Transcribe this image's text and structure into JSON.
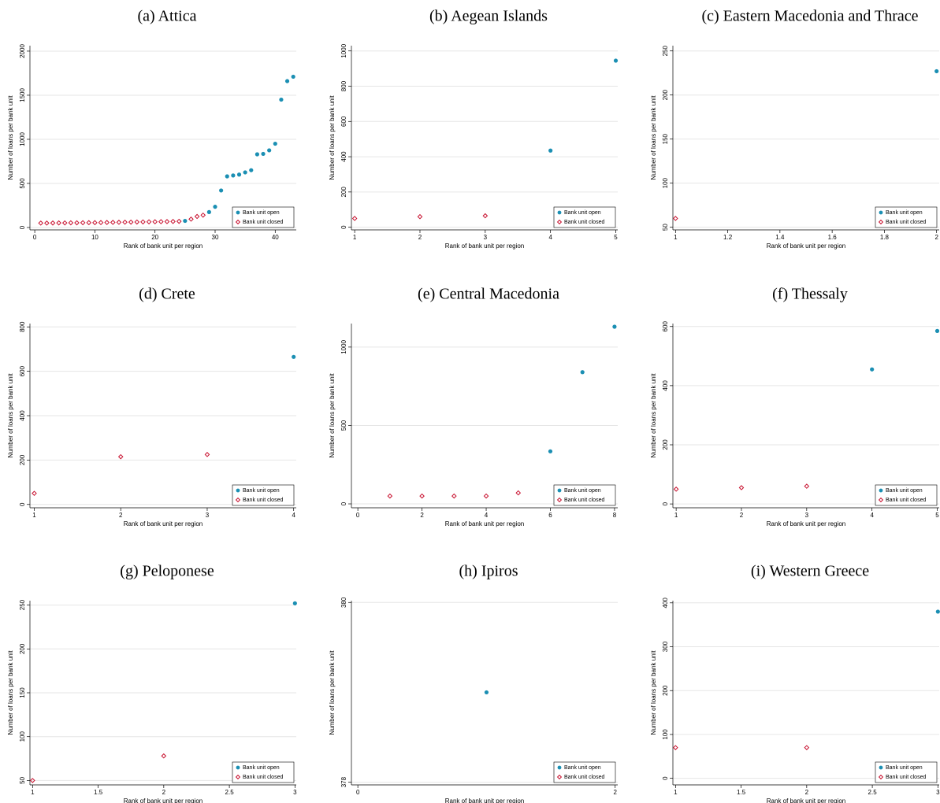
{
  "chart_data": [
    {
      "type": "scatter",
      "title": "(a) Attica",
      "x_label": "Rank of bank unit per region",
      "y_label": "Number of loans per bank unit",
      "xlim": [
        -0.8,
        43.5
      ],
      "ylim": [
        -27,
        2062
      ],
      "xticks": [
        0,
        10,
        20,
        30,
        40
      ],
      "yticks": [
        0,
        500,
        1000,
        1500,
        2000
      ],
      "grid": true,
      "legend": "lower right",
      "series": [
        {
          "name": "Bank unit open",
          "color": "#1b8fb3",
          "marker": "circle",
          "x": [
            25,
            29,
            30,
            31,
            32,
            33,
            34,
            35,
            36,
            37,
            38,
            39,
            40,
            41,
            42,
            43
          ],
          "y": [
            75,
            175,
            235,
            420,
            580,
            590,
            600,
            625,
            650,
            830,
            835,
            875,
            950,
            1450,
            1660,
            1710
          ]
        },
        {
          "name": "Bank unit closed",
          "color": "#c8102e",
          "marker": "diamond",
          "x": [
            1,
            2,
            3,
            4,
            5,
            6,
            7,
            8,
            9,
            10,
            11,
            12,
            13,
            14,
            15,
            16,
            17,
            18,
            19,
            20,
            21,
            22,
            23,
            24,
            26,
            27,
            28
          ],
          "y": [
            50,
            50,
            51,
            52,
            52,
            53,
            53,
            54,
            55,
            55,
            56,
            57,
            58,
            59,
            60,
            61,
            62,
            63,
            64,
            65,
            66,
            67,
            68,
            70,
            95,
            125,
            140
          ]
        }
      ]
    },
    {
      "type": "scatter",
      "title": "(b) Aegean Islands",
      "x_label": "Rank of bank unit per region",
      "y_label": "Number of loans per bank unit",
      "xlim": [
        0.95,
        5.03
      ],
      "ylim": [
        -15,
        1030
      ],
      "xticks": [
        1,
        2,
        3,
        4,
        5
      ],
      "yticks": [
        0,
        200,
        400,
        600,
        800,
        1000
      ],
      "grid": true,
      "legend": "lower right",
      "series": [
        {
          "name": "Bank unit open",
          "color": "#1b8fb3",
          "marker": "circle",
          "x": [
            4,
            5
          ],
          "y": [
            435,
            945
          ]
        },
        {
          "name": "Bank unit closed",
          "color": "#c8102e",
          "marker": "diamond",
          "x": [
            1,
            2,
            3
          ],
          "y": [
            50,
            60,
            65
          ]
        }
      ]
    },
    {
      "type": "scatter",
      "title": "(c) Eastern Macedonia and Thrace",
      "x_label": "Rank of bank unit per region",
      "y_label": "Number of loans per bank unit",
      "xlim": [
        0.99,
        2.01
      ],
      "ylim": [
        47,
        256
      ],
      "xticks": [
        1,
        1.2,
        1.4,
        1.6,
        1.8,
        2
      ],
      "yticks": [
        50,
        100,
        150,
        200,
        250
      ],
      "grid": true,
      "legend": "lower right",
      "series": [
        {
          "name": "Bank unit open",
          "color": "#1b8fb3",
          "marker": "circle",
          "x": [
            2
          ],
          "y": [
            227
          ]
        },
        {
          "name": "Bank unit closed",
          "color": "#c8102e",
          "marker": "diamond",
          "x": [
            1
          ],
          "y": [
            60
          ]
        }
      ]
    },
    {
      "type": "scatter",
      "title": "(d) Crete",
      "x_label": "Rank of bank unit per region",
      "y_label": "Number of loans per bank unit",
      "xlim": [
        0.95,
        4.03
      ],
      "ylim": [
        -15,
        815
      ],
      "xticks": [
        1,
        2,
        3,
        4
      ],
      "yticks": [
        0,
        200,
        400,
        600,
        800
      ],
      "grid": true,
      "legend": "lower right",
      "series": [
        {
          "name": "Bank unit open",
          "color": "#1b8fb3",
          "marker": "circle",
          "x": [
            4
          ],
          "y": [
            665
          ]
        },
        {
          "name": "Bank unit closed",
          "color": "#c8102e",
          "marker": "diamond",
          "x": [
            1,
            2,
            3
          ],
          "y": [
            50,
            215,
            225
          ]
        }
      ]
    },
    {
      "type": "scatter",
      "title": "(e) Central Macedonia",
      "x_label": "Rank of bank unit per region",
      "y_label": "Number of loans per bank unit",
      "xlim": [
        -0.2,
        8.1
      ],
      "ylim": [
        -25,
        1150
      ],
      "xticks": [
        0,
        2,
        4,
        6,
        8
      ],
      "yticks": [
        0,
        500,
        1000
      ],
      "grid": true,
      "legend": "lower right",
      "series": [
        {
          "name": "Bank unit open",
          "color": "#1b8fb3",
          "marker": "circle",
          "x": [
            6,
            7,
            8
          ],
          "y": [
            335,
            840,
            1130
          ]
        },
        {
          "name": "Bank unit closed",
          "color": "#c8102e",
          "marker": "diamond",
          "x": [
            1,
            2,
            3,
            4,
            5
          ],
          "y": [
            50,
            50,
            50,
            50,
            70
          ]
        }
      ]
    },
    {
      "type": "scatter",
      "title": "(f) Thessaly",
      "x_label": "Rank of bank unit per region",
      "y_label": "Number of loans per bank unit",
      "xlim": [
        0.95,
        5.03
      ],
      "ylim": [
        -13,
        610
      ],
      "xticks": [
        1,
        2,
        3,
        4,
        5
      ],
      "yticks": [
        0,
        200,
        400,
        600
      ],
      "grid": true,
      "legend": "lower right",
      "series": [
        {
          "name": "Bank unit open",
          "color": "#1b8fb3",
          "marker": "circle",
          "x": [
            4,
            5
          ],
          "y": [
            455,
            585
          ]
        },
        {
          "name": "Bank unit closed",
          "color": "#c8102e",
          "marker": "diamond",
          "x": [
            1,
            2,
            3
          ],
          "y": [
            50,
            55,
            60
          ]
        }
      ]
    },
    {
      "type": "scatter",
      "title": "(g) Peloponese",
      "x_label": "Rank of bank unit per region",
      "y_label": "Number of loans per bank unit",
      "xlim": [
        0.98,
        3.01
      ],
      "ylim": [
        45,
        255
      ],
      "xticks": [
        1,
        1.5,
        2,
        2.5,
        3
      ],
      "yticks": [
        50,
        100,
        150,
        200,
        250
      ],
      "grid": true,
      "legend": "lower right",
      "series": [
        {
          "name": "Bank unit open",
          "color": "#1b8fb3",
          "marker": "circle",
          "x": [
            3
          ],
          "y": [
            252
          ]
        },
        {
          "name": "Bank unit closed",
          "color": "#c8102e",
          "marker": "diamond",
          "x": [
            1,
            2
          ],
          "y": [
            50,
            78
          ]
        }
      ]
    },
    {
      "type": "scatter",
      "title": "(h) Ipiros",
      "x_label": "Rank of bank unit per region",
      "y_label": "Number of loans per bank unit",
      "xlim": [
        -0.05,
        2.02
      ],
      "ylim": [
        377.97,
        380.02
      ],
      "xticks": [
        0,
        2
      ],
      "yticks": [
        378,
        380
      ],
      "grid": true,
      "legend": "lower right",
      "series": [
        {
          "name": "Bank unit open",
          "color": "#1b8fb3",
          "marker": "circle",
          "x": [
            1
          ],
          "y": [
            379
          ]
        },
        {
          "name": "Bank unit closed",
          "color": "#c8102e",
          "marker": "diamond",
          "x": [],
          "y": []
        }
      ]
    },
    {
      "type": "scatter",
      "title": "(i) Western Greece",
      "x_label": "Rank of bank unit per region",
      "y_label": "Number of loans per bank unit",
      "xlim": [
        0.98,
        3.01
      ],
      "ylim": [
        -15,
        405
      ],
      "xticks": [
        1,
        1.5,
        2,
        2.5,
        3
      ],
      "yticks": [
        0,
        100,
        200,
        300,
        400
      ],
      "grid": true,
      "legend": "lower right",
      "series": [
        {
          "name": "Bank unit open",
          "color": "#1b8fb3",
          "marker": "circle",
          "x": [
            3
          ],
          "y": [
            380
          ]
        },
        {
          "name": "Bank unit closed",
          "color": "#c8102e",
          "marker": "diamond",
          "x": [
            1,
            2
          ],
          "y": [
            70,
            70
          ]
        }
      ]
    }
  ]
}
